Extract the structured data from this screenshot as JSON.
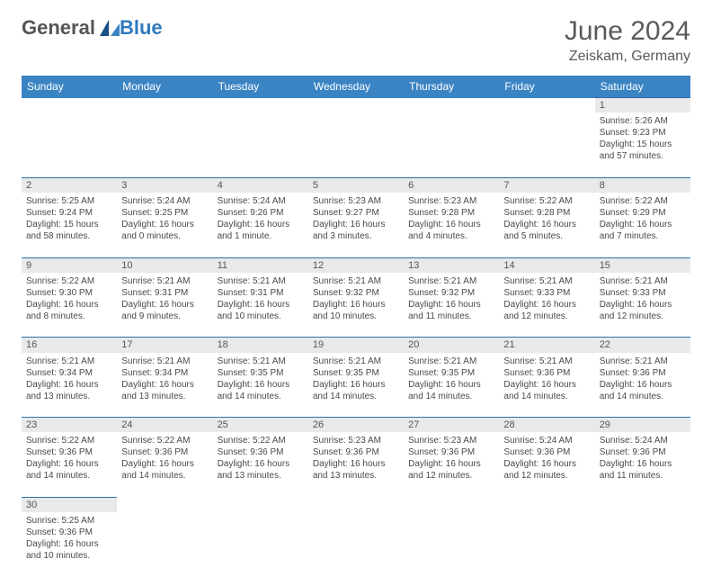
{
  "brand": {
    "main": "General",
    "sub": "Blue"
  },
  "title": {
    "month": "June 2024",
    "location": "Zeiskam, Germany"
  },
  "colors": {
    "header_bg": "#3b84c4",
    "header_text": "#ffffff",
    "daynum_bg": "#e9e9e9",
    "row_border": "#2f6fa8",
    "body_text": "#4a4a4a",
    "title_text": "#5a5a5a",
    "brand_main": "#555555",
    "brand_sub": "#2f7abf"
  },
  "weekdays": [
    "Sunday",
    "Monday",
    "Tuesday",
    "Wednesday",
    "Thursday",
    "Friday",
    "Saturday"
  ],
  "weeks": [
    [
      null,
      null,
      null,
      null,
      null,
      null,
      {
        "n": "1",
        "sr": "Sunrise: 5:26 AM",
        "ss": "Sunset: 9:23 PM",
        "dl": "Daylight: 15 hours and 57 minutes."
      }
    ],
    [
      {
        "n": "2",
        "sr": "Sunrise: 5:25 AM",
        "ss": "Sunset: 9:24 PM",
        "dl": "Daylight: 15 hours and 58 minutes."
      },
      {
        "n": "3",
        "sr": "Sunrise: 5:24 AM",
        "ss": "Sunset: 9:25 PM",
        "dl": "Daylight: 16 hours and 0 minutes."
      },
      {
        "n": "4",
        "sr": "Sunrise: 5:24 AM",
        "ss": "Sunset: 9:26 PM",
        "dl": "Daylight: 16 hours and 1 minute."
      },
      {
        "n": "5",
        "sr": "Sunrise: 5:23 AM",
        "ss": "Sunset: 9:27 PM",
        "dl": "Daylight: 16 hours and 3 minutes."
      },
      {
        "n": "6",
        "sr": "Sunrise: 5:23 AM",
        "ss": "Sunset: 9:28 PM",
        "dl": "Daylight: 16 hours and 4 minutes."
      },
      {
        "n": "7",
        "sr": "Sunrise: 5:22 AM",
        "ss": "Sunset: 9:28 PM",
        "dl": "Daylight: 16 hours and 5 minutes."
      },
      {
        "n": "8",
        "sr": "Sunrise: 5:22 AM",
        "ss": "Sunset: 9:29 PM",
        "dl": "Daylight: 16 hours and 7 minutes."
      }
    ],
    [
      {
        "n": "9",
        "sr": "Sunrise: 5:22 AM",
        "ss": "Sunset: 9:30 PM",
        "dl": "Daylight: 16 hours and 8 minutes."
      },
      {
        "n": "10",
        "sr": "Sunrise: 5:21 AM",
        "ss": "Sunset: 9:31 PM",
        "dl": "Daylight: 16 hours and 9 minutes."
      },
      {
        "n": "11",
        "sr": "Sunrise: 5:21 AM",
        "ss": "Sunset: 9:31 PM",
        "dl": "Daylight: 16 hours and 10 minutes."
      },
      {
        "n": "12",
        "sr": "Sunrise: 5:21 AM",
        "ss": "Sunset: 9:32 PM",
        "dl": "Daylight: 16 hours and 10 minutes."
      },
      {
        "n": "13",
        "sr": "Sunrise: 5:21 AM",
        "ss": "Sunset: 9:32 PM",
        "dl": "Daylight: 16 hours and 11 minutes."
      },
      {
        "n": "14",
        "sr": "Sunrise: 5:21 AM",
        "ss": "Sunset: 9:33 PM",
        "dl": "Daylight: 16 hours and 12 minutes."
      },
      {
        "n": "15",
        "sr": "Sunrise: 5:21 AM",
        "ss": "Sunset: 9:33 PM",
        "dl": "Daylight: 16 hours and 12 minutes."
      }
    ],
    [
      {
        "n": "16",
        "sr": "Sunrise: 5:21 AM",
        "ss": "Sunset: 9:34 PM",
        "dl": "Daylight: 16 hours and 13 minutes."
      },
      {
        "n": "17",
        "sr": "Sunrise: 5:21 AM",
        "ss": "Sunset: 9:34 PM",
        "dl": "Daylight: 16 hours and 13 minutes."
      },
      {
        "n": "18",
        "sr": "Sunrise: 5:21 AM",
        "ss": "Sunset: 9:35 PM",
        "dl": "Daylight: 16 hours and 14 minutes."
      },
      {
        "n": "19",
        "sr": "Sunrise: 5:21 AM",
        "ss": "Sunset: 9:35 PM",
        "dl": "Daylight: 16 hours and 14 minutes."
      },
      {
        "n": "20",
        "sr": "Sunrise: 5:21 AM",
        "ss": "Sunset: 9:35 PM",
        "dl": "Daylight: 16 hours and 14 minutes."
      },
      {
        "n": "21",
        "sr": "Sunrise: 5:21 AM",
        "ss": "Sunset: 9:36 PM",
        "dl": "Daylight: 16 hours and 14 minutes."
      },
      {
        "n": "22",
        "sr": "Sunrise: 5:21 AM",
        "ss": "Sunset: 9:36 PM",
        "dl": "Daylight: 16 hours and 14 minutes."
      }
    ],
    [
      {
        "n": "23",
        "sr": "Sunrise: 5:22 AM",
        "ss": "Sunset: 9:36 PM",
        "dl": "Daylight: 16 hours and 14 minutes."
      },
      {
        "n": "24",
        "sr": "Sunrise: 5:22 AM",
        "ss": "Sunset: 9:36 PM",
        "dl": "Daylight: 16 hours and 14 minutes."
      },
      {
        "n": "25",
        "sr": "Sunrise: 5:22 AM",
        "ss": "Sunset: 9:36 PM",
        "dl": "Daylight: 16 hours and 13 minutes."
      },
      {
        "n": "26",
        "sr": "Sunrise: 5:23 AM",
        "ss": "Sunset: 9:36 PM",
        "dl": "Daylight: 16 hours and 13 minutes."
      },
      {
        "n": "27",
        "sr": "Sunrise: 5:23 AM",
        "ss": "Sunset: 9:36 PM",
        "dl": "Daylight: 16 hours and 12 minutes."
      },
      {
        "n": "28",
        "sr": "Sunrise: 5:24 AM",
        "ss": "Sunset: 9:36 PM",
        "dl": "Daylight: 16 hours and 12 minutes."
      },
      {
        "n": "29",
        "sr": "Sunrise: 5:24 AM",
        "ss": "Sunset: 9:36 PM",
        "dl": "Daylight: 16 hours and 11 minutes."
      }
    ],
    [
      {
        "n": "30",
        "sr": "Sunrise: 5:25 AM",
        "ss": "Sunset: 9:36 PM",
        "dl": "Daylight: 16 hours and 10 minutes."
      },
      null,
      null,
      null,
      null,
      null,
      null
    ]
  ]
}
